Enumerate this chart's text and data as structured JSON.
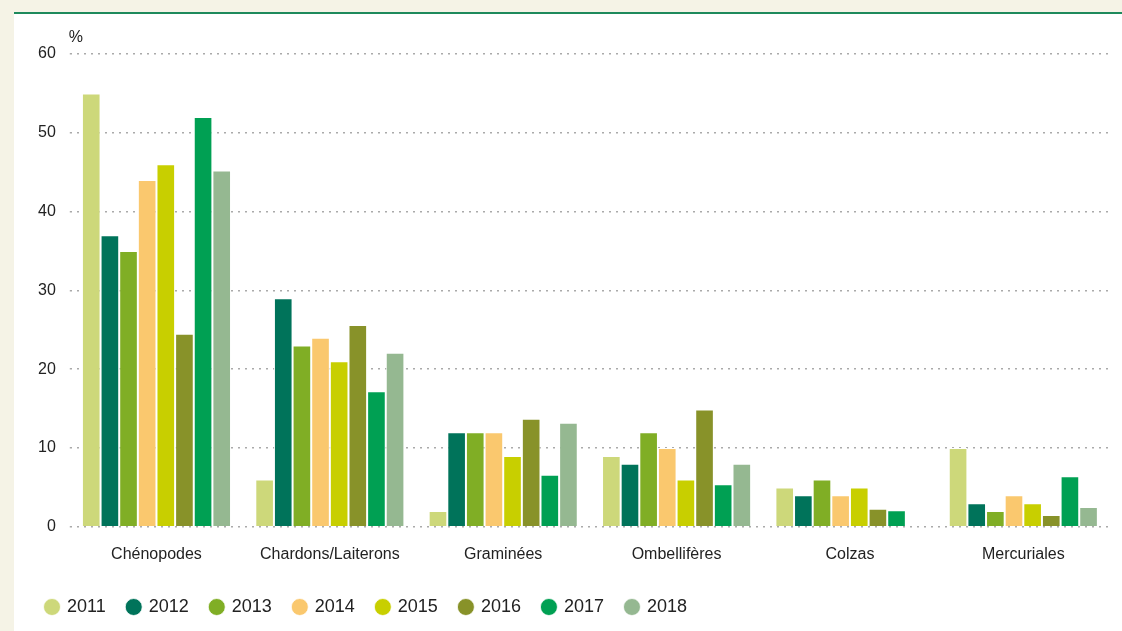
{
  "chart_data": {
    "type": "bar",
    "ylabel": "%",
    "categories": [
      "Chénopodes",
      "Chardons/Laiterons",
      "Graminées",
      "Ombellifères",
      "Colzas",
      "Mercuriales"
    ],
    "series": [
      {
        "name": "2011",
        "color": "#cdd87a",
        "values": [
          55,
          6,
          2,
          9,
          5,
          10
        ]
      },
      {
        "name": "2012",
        "color": "#00735a",
        "values": [
          37,
          29,
          12,
          8,
          4,
          3
        ]
      },
      {
        "name": "2013",
        "color": "#80ae25",
        "values": [
          35,
          23,
          12,
          12,
          6,
          2
        ]
      },
      {
        "name": "2014",
        "color": "#fac86e",
        "values": [
          44,
          24,
          12,
          10,
          4,
          4
        ]
      },
      {
        "name": "2015",
        "color": "#c8cf00",
        "values": [
          46,
          21,
          9,
          6,
          5,
          3
        ]
      },
      {
        "name": "2016",
        "color": "#889229",
        "values": [
          24.5,
          25.6,
          13.7,
          14.9,
          2.3,
          1.5
        ]
      },
      {
        "name": "2017",
        "color": "#00a053",
        "values": [
          52,
          17.2,
          6.6,
          5.4,
          2.1,
          6.4
        ]
      },
      {
        "name": "2018",
        "color": "#95b891",
        "values": [
          45.2,
          22.1,
          13.2,
          8,
          null,
          2.5
        ]
      }
    ],
    "ylim": [
      0,
      60
    ],
    "yticks": [
      0,
      10,
      20,
      30,
      40,
      50,
      60
    ],
    "grid": "y",
    "legend": "bottom"
  }
}
